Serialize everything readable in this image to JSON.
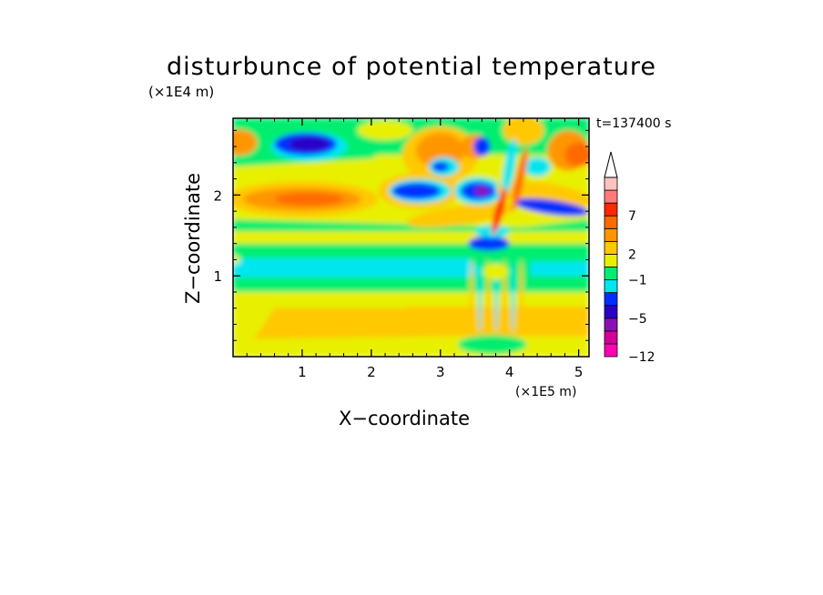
{
  "chart_data": {
    "type": "heatmap",
    "title": "disturbunce of potential temperature",
    "xlabel": "X−coordinate",
    "ylabel": "Z−coordinate",
    "x_unit": "(×1E5 m)",
    "y_unit": "(×1E4 m)",
    "time_label": "t=137400 s",
    "xlim": [
      0,
      5.15
    ],
    "ylim": [
      0,
      2.95
    ],
    "x_ticks": [
      "1",
      "2",
      "3",
      "4",
      "5"
    ],
    "y_ticks": [
      "1",
      "2"
    ],
    "colorbar": {
      "tick_labels": [
        "7",
        "2",
        "−1",
        "−5",
        "−12"
      ],
      "colors": [
        "#ff00b4",
        "#d4009a",
        "#8a12b4",
        "#2a00c8",
        "#0030ff",
        "#00e6f0",
        "#00ee70",
        "#e8f000",
        "#ffc800",
        "#ff9600",
        "#ff6a00",
        "#ff2800",
        "#ff7a7a",
        "#ffc0c0"
      ]
    }
  }
}
